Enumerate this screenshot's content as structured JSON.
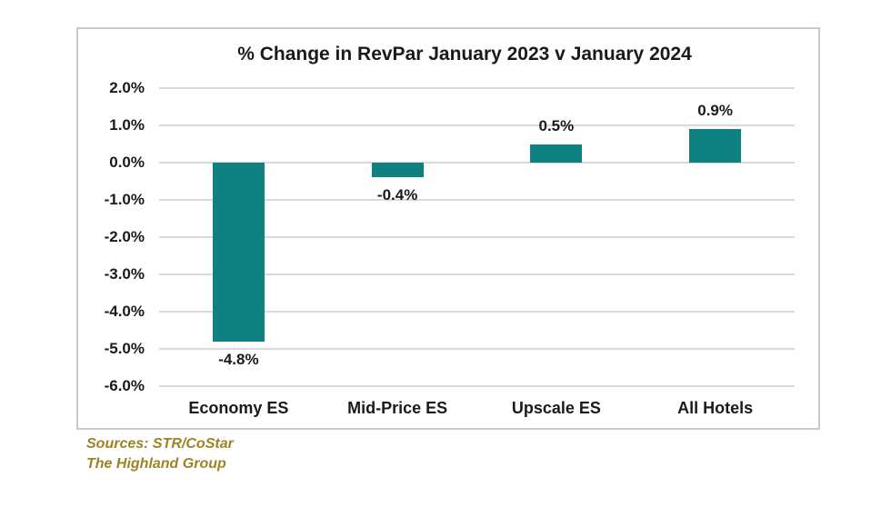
{
  "chart_data": {
    "type": "bar",
    "title": "% Change in RevPar January 2023 v January 2024",
    "categories": [
      "Economy ES",
      "Mid-Price ES",
      "Upscale ES",
      "All Hotels"
    ],
    "values": [
      -4.8,
      -0.4,
      0.5,
      0.9
    ],
    "data_labels": [
      "-4.8%",
      "-0.4%",
      "0.5%",
      "0.9%"
    ],
    "y_ticks": [
      2.0,
      1.0,
      0.0,
      -1.0,
      -2.0,
      -3.0,
      -4.0,
      -5.0,
      -6.0
    ],
    "y_tick_labels": [
      "2.0%",
      "1.0%",
      "0.0%",
      "-1.0%",
      "-2.0%",
      "-3.0%",
      "-4.0%",
      "-5.0%",
      "-6.0%"
    ],
    "ylim": [
      -6.0,
      2.0
    ],
    "xlabel": "",
    "ylabel": "",
    "grid": "horizontal",
    "legend": "none",
    "bar_color": "#0f8183",
    "gridline_color": "#d9d9d9",
    "text_color": "#1a1a1a"
  },
  "footer": {
    "line1": "Sources: STR/CoStar",
    "line2": "The Highland Group",
    "color": "#9c8423"
  }
}
